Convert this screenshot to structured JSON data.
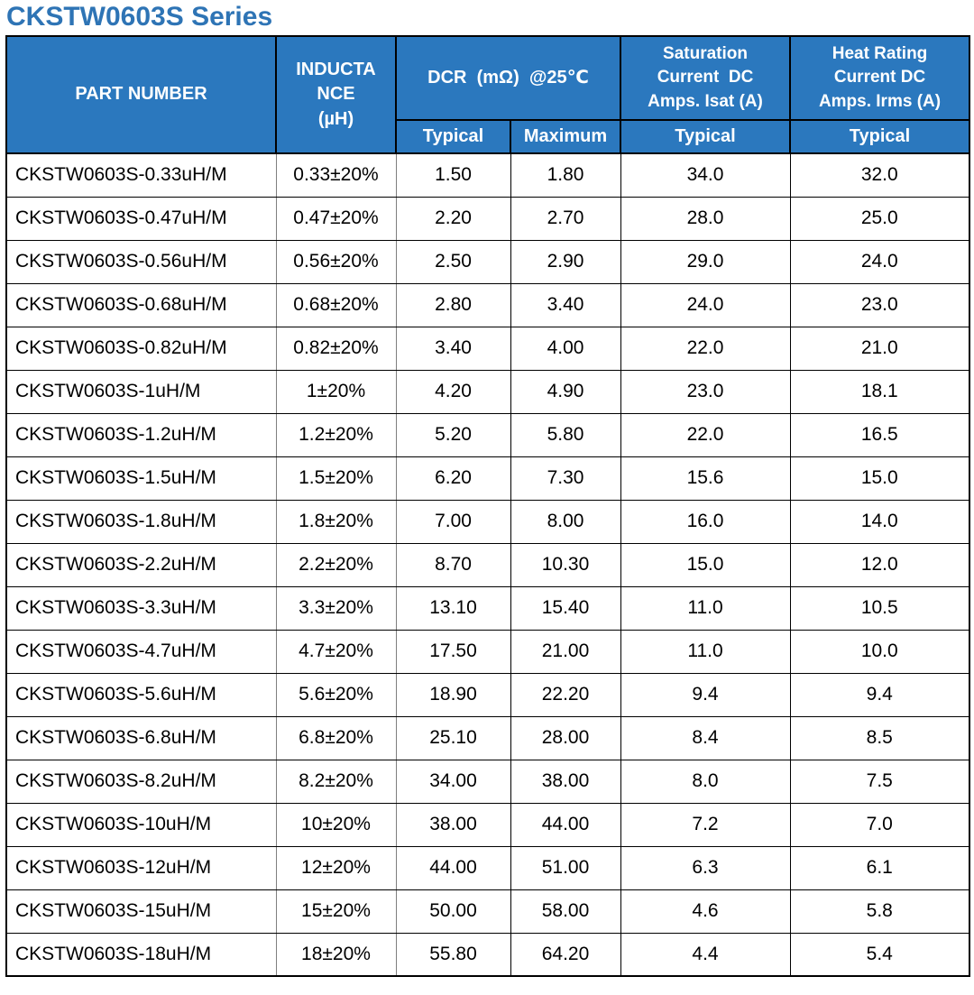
{
  "title": "CKSTW0603S Series",
  "colors": {
    "title_text": "#2e74b5",
    "header_bg": "#2b78be",
    "header_text": "#ffffff",
    "body_text": "#000000",
    "grid_black": "#000000",
    "grid_gray": "#7f7f7f"
  },
  "table": {
    "headers": {
      "part_number": "PART NUMBER",
      "inductance": "INDUCTA\nNCE\n(µH)",
      "dcr_group": "DCR  (mΩ)  @25℃",
      "dcr_typical": "Typical",
      "dcr_maximum": "Maximum",
      "saturation_group": "Saturation\nCurrent  DC\nAmps. Isat (A)",
      "heat_group": "Heat Rating\nCurrent DC\nAmps. Irms (A)",
      "saturation_typical": "Typical",
      "heat_typical": "Typical"
    },
    "col_names": [
      "cell-part-number",
      "cell-inductance",
      "cell-dcr-typical",
      "cell-dcr-maximum",
      "cell-isat-typical",
      "cell-irms-typical"
    ],
    "rows": [
      [
        "CKSTW0603S-0.33uH/M",
        "0.33±20%",
        "1.50",
        "1.80",
        "34.0",
        "32.0"
      ],
      [
        "CKSTW0603S-0.47uH/M",
        "0.47±20%",
        "2.20",
        "2.70",
        "28.0",
        "25.0"
      ],
      [
        "CKSTW0603S-0.56uH/M",
        "0.56±20%",
        "2.50",
        "2.90",
        "29.0",
        "24.0"
      ],
      [
        "CKSTW0603S-0.68uH/M",
        "0.68±20%",
        "2.80",
        "3.40",
        "24.0",
        "23.0"
      ],
      [
        "CKSTW0603S-0.82uH/M",
        "0.82±20%",
        "3.40",
        "4.00",
        "22.0",
        "21.0"
      ],
      [
        "CKSTW0603S-1uH/M",
        "1±20%",
        "4.20",
        "4.90",
        "23.0",
        "18.1"
      ],
      [
        "CKSTW0603S-1.2uH/M",
        "1.2±20%",
        "5.20",
        "5.80",
        "22.0",
        "16.5"
      ],
      [
        "CKSTW0603S-1.5uH/M",
        "1.5±20%",
        "6.20",
        "7.30",
        "15.6",
        "15.0"
      ],
      [
        "CKSTW0603S-1.8uH/M",
        "1.8±20%",
        "7.00",
        "8.00",
        "16.0",
        "14.0"
      ],
      [
        "CKSTW0603S-2.2uH/M",
        "2.2±20%",
        "8.70",
        "10.30",
        "15.0",
        "12.0"
      ],
      [
        "CKSTW0603S-3.3uH/M",
        "3.3±20%",
        "13.10",
        "15.40",
        "11.0",
        "10.5"
      ],
      [
        "CKSTW0603S-4.7uH/M",
        "4.7±20%",
        "17.50",
        "21.00",
        "11.0",
        "10.0"
      ],
      [
        "CKSTW0603S-5.6uH/M",
        "5.6±20%",
        "18.90",
        "22.20",
        "9.4",
        "9.4"
      ],
      [
        "CKSTW0603S-6.8uH/M",
        "6.8±20%",
        "25.10",
        "28.00",
        "8.4",
        "8.5"
      ],
      [
        "CKSTW0603S-8.2uH/M",
        "8.2±20%",
        "34.00",
        "38.00",
        "8.0",
        "7.5"
      ],
      [
        "CKSTW0603S-10uH/M",
        "10±20%",
        "38.00",
        "44.00",
        "7.2",
        "7.0"
      ],
      [
        "CKSTW0603S-12uH/M",
        "12±20%",
        "44.00",
        "51.00",
        "6.3",
        "6.1"
      ],
      [
        "CKSTW0603S-15uH/M",
        "15±20%",
        "50.00",
        "58.00",
        "4.6",
        "5.8"
      ],
      [
        "CKSTW0603S-18uH/M",
        "18±20%",
        "55.80",
        "64.20",
        "4.4",
        "5.4"
      ]
    ]
  }
}
